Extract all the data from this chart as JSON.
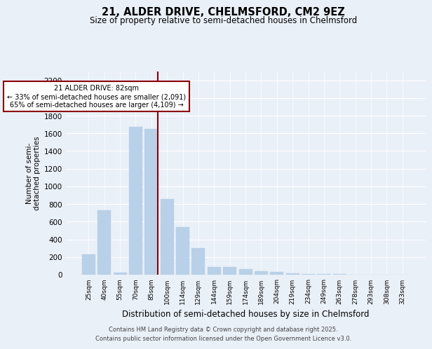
{
  "title1": "21, ALDER DRIVE, CHELMSFORD, CM2 9EZ",
  "title2": "Size of property relative to semi-detached houses in Chelmsford",
  "xlabel": "Distribution of semi-detached houses by size in Chelmsford",
  "ylabel": "Number of semi-\ndetached properties",
  "categories": [
    "25sqm",
    "40sqm",
    "55sqm",
    "70sqm",
    "85sqm",
    "100sqm",
    "114sqm",
    "129sqm",
    "144sqm",
    "159sqm",
    "174sqm",
    "189sqm",
    "204sqm",
    "219sqm",
    "234sqm",
    "249sqm",
    "263sqm",
    "278sqm",
    "293sqm",
    "308sqm",
    "323sqm"
  ],
  "values": [
    230,
    730,
    20,
    1670,
    1650,
    860,
    540,
    300,
    90,
    85,
    65,
    40,
    28,
    12,
    10,
    5,
    4,
    3,
    2,
    1,
    1
  ],
  "bar_color": "#b8d0e8",
  "bar_edgecolor": "#b8d0e8",
  "property_line_color": "#8b0000",
  "annotation_text": "21 ALDER DRIVE: 82sqm\n← 33% of semi-detached houses are smaller (2,091)\n65% of semi-detached houses are larger (4,109) →",
  "annotation_box_color": "#8b0000",
  "ylim": [
    0,
    2300
  ],
  "yticks": [
    0,
    200,
    400,
    600,
    800,
    1000,
    1200,
    1400,
    1600,
    1800,
    2000,
    2200
  ],
  "footer1": "Contains HM Land Registry data © Crown copyright and database right 2025.",
  "footer2": "Contains public sector information licensed under the Open Government Licence v3.0.",
  "bg_color": "#eaf0f8",
  "plot_bg_color": "#eaf0f8",
  "property_bar_index": 4
}
